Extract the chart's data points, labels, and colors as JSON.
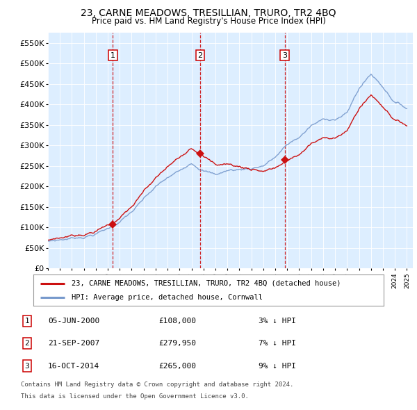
{
  "title": "23, CARNE MEADOWS, TRESILLIAN, TRURO, TR2 4BQ",
  "subtitle": "Price paid vs. HM Land Registry's House Price Index (HPI)",
  "fig_bg_color": "#ffffff",
  "plot_bg_color": "#ddeeff",
  "ylim": [
    0,
    575000
  ],
  "yticks": [
    0,
    50000,
    100000,
    150000,
    200000,
    250000,
    300000,
    350000,
    400000,
    450000,
    500000,
    550000
  ],
  "ytick_labels": [
    "£0",
    "£50K",
    "£100K",
    "£150K",
    "£200K",
    "£250K",
    "£300K",
    "£350K",
    "£400K",
    "£450K",
    "£500K",
    "£550K"
  ],
  "sale_year_floats": [
    2000.42,
    2007.72,
    2014.79
  ],
  "sale_prices": [
    108000,
    279950,
    265000
  ],
  "sale_labels": [
    "1",
    "2",
    "3"
  ],
  "sale_info": [
    {
      "label": "1",
      "date": "05-JUN-2000",
      "price": "£108,000",
      "pct": "3%",
      "dir": "↓",
      "vs": "HPI"
    },
    {
      "label": "2",
      "date": "21-SEP-2007",
      "price": "£279,950",
      "pct": "7%",
      "dir": "↓",
      "vs": "HPI"
    },
    {
      "label": "3",
      "date": "16-OCT-2014",
      "price": "£265,000",
      "pct": "9%",
      "dir": "↓",
      "vs": "HPI"
    }
  ],
  "legend_line1": "23, CARNE MEADOWS, TRESILLIAN, TRURO, TR2 4BQ (detached house)",
  "legend_line2": "HPI: Average price, detached house, Cornwall",
  "footer1": "Contains HM Land Registry data © Crown copyright and database right 2024.",
  "footer2": "This data is licensed under the Open Government Licence v3.0.",
  "hpi_color": "#7799cc",
  "sale_line_color": "#cc1111",
  "vline_color": "#cc0000",
  "xtick_years": [
    1995,
    1996,
    1997,
    1998,
    1999,
    2000,
    2001,
    2002,
    2003,
    2004,
    2005,
    2006,
    2007,
    2008,
    2009,
    2010,
    2011,
    2012,
    2013,
    2014,
    2015,
    2016,
    2017,
    2018,
    2019,
    2020,
    2021,
    2022,
    2023,
    2024,
    2025
  ]
}
